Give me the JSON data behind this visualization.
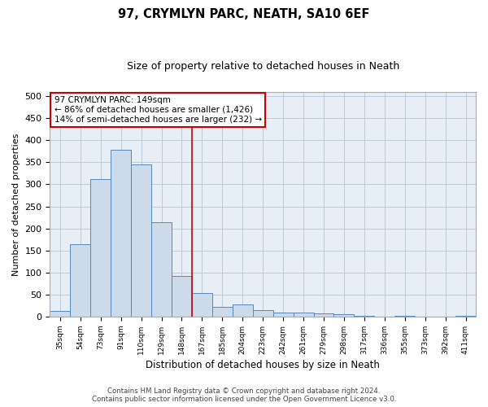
{
  "title1": "97, CRYMLYN PARC, NEATH, SA10 6EF",
  "title2": "Size of property relative to detached houses in Neath",
  "xlabel": "Distribution of detached houses by size in Neath",
  "ylabel": "Number of detached properties",
  "categories": [
    "35sqm",
    "54sqm",
    "73sqm",
    "91sqm",
    "110sqm",
    "129sqm",
    "148sqm",
    "167sqm",
    "185sqm",
    "204sqm",
    "223sqm",
    "242sqm",
    "261sqm",
    "279sqm",
    "298sqm",
    "317sqm",
    "336sqm",
    "355sqm",
    "373sqm",
    "392sqm",
    "411sqm"
  ],
  "values": [
    13,
    165,
    312,
    378,
    345,
    215,
    93,
    54,
    23,
    28,
    14,
    10,
    9,
    7,
    5,
    1,
    0,
    1,
    0,
    0,
    2
  ],
  "bar_color": "#ccdaea",
  "bar_edge_color": "#5588bb",
  "vline_color": "#cc0000",
  "annotation_text": "97 CRYMLYN PARC: 149sqm\n← 86% of detached houses are smaller (1,426)\n14% of semi-detached houses are larger (232) →",
  "annotation_box_color": "#cc0000",
  "ylim": [
    0,
    510
  ],
  "yticks": [
    0,
    50,
    100,
    150,
    200,
    250,
    300,
    350,
    400,
    450,
    500
  ],
  "background_color": "#e8eef6",
  "footer1": "Contains HM Land Registry data © Crown copyright and database right 2024.",
  "footer2": "Contains public sector information licensed under the Open Government Licence v3.0."
}
